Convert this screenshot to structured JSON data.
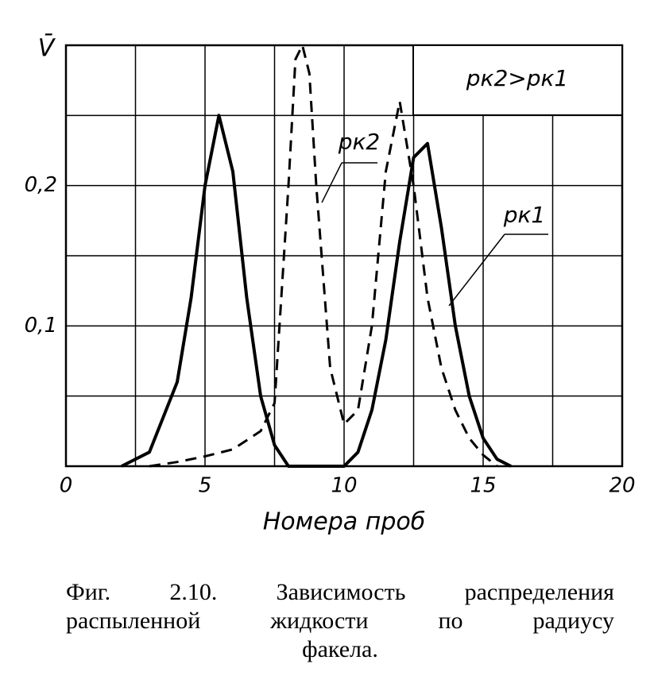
{
  "chart_data": {
    "type": "line",
    "y_label": "V̄",
    "x_label": "Номера проб",
    "xlim": [
      0,
      20
    ],
    "xticks": [
      0,
      5,
      10,
      15,
      20
    ],
    "xminor": [
      2.5,
      7.5,
      12.5,
      17.5
    ],
    "ylim": [
      0,
      0.3
    ],
    "yticks": [
      {
        "value": 0.1,
        "label": "0,1"
      },
      {
        "value": 0.2,
        "label": "0,2"
      }
    ],
    "yminor": [
      0.05,
      0.15,
      0.25
    ],
    "grid": true,
    "series": [
      {
        "name": "pк1",
        "color": "#000000",
        "dash": false,
        "x": [
          2,
          3,
          4,
          4.5,
          5,
          5.5,
          6,
          6.5,
          7,
          7.5,
          8,
          9,
          10,
          10.5,
          11,
          11.5,
          12,
          12.5,
          13,
          13.5,
          14,
          14.5,
          15,
          15.5,
          16
        ],
        "values": [
          0,
          0.01,
          0.06,
          0.12,
          0.2,
          0.25,
          0.21,
          0.12,
          0.05,
          0.015,
          0,
          0,
          0,
          0.01,
          0.04,
          0.09,
          0.16,
          0.22,
          0.23,
          0.17,
          0.1,
          0.05,
          0.02,
          0.005,
          0
        ]
      },
      {
        "name": "pк2",
        "color": "#000000",
        "dash": true,
        "x": [
          3,
          4,
          5,
          6,
          7,
          7.5,
          8,
          8.25,
          8.5,
          8.75,
          9,
          9.5,
          10,
          10.5,
          11,
          11.5,
          12,
          12.5,
          13,
          13.5,
          14,
          14.5,
          15,
          15.5
        ],
        "values": [
          0,
          0.003,
          0.007,
          0.012,
          0.025,
          0.045,
          0.2,
          0.29,
          0.3,
          0.28,
          0.2,
          0.07,
          0.03,
          0.04,
          0.1,
          0.21,
          0.26,
          0.2,
          0.12,
          0.07,
          0.04,
          0.02,
          0.008,
          0
        ]
      }
    ],
    "condition_note": "pк2>pк1",
    "caption": [
      "Фиг. 2.10. Зависимость распределения",
      "распыленной жидкости по радиусу",
      "факела."
    ]
  }
}
